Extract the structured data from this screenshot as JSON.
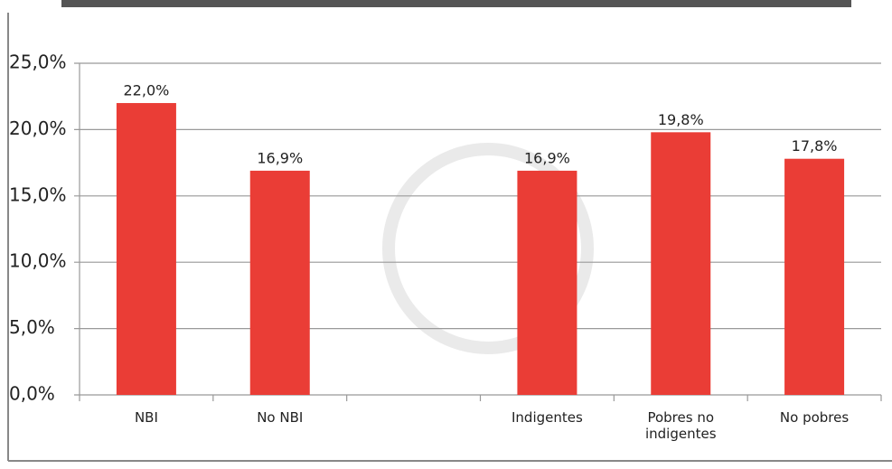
{
  "chart_data": {
    "type": "bar",
    "categories": [
      "NBI",
      "No NBI",
      null,
      "Indigentes",
      "Pobres no indigentes",
      "No pobres"
    ],
    "values": [
      22.0,
      16.9,
      null,
      16.9,
      19.8,
      17.8
    ],
    "value_labels": [
      "22,0%",
      "16,9%",
      null,
      "16,9%",
      "19,8%",
      "17,8%"
    ],
    "color": "#ea3d36",
    "ylim": [
      0,
      25
    ],
    "yticks": [
      {
        "value": 0,
        "label": "0,0%"
      },
      {
        "value": 5,
        "label": "5,0%"
      },
      {
        "value": 10,
        "label": "10,0%"
      },
      {
        "value": 15,
        "label": "15,0%"
      },
      {
        "value": 20,
        "label": "20,0%"
      },
      {
        "value": 25,
        "label": "25,0%"
      }
    ],
    "grid": true
  }
}
